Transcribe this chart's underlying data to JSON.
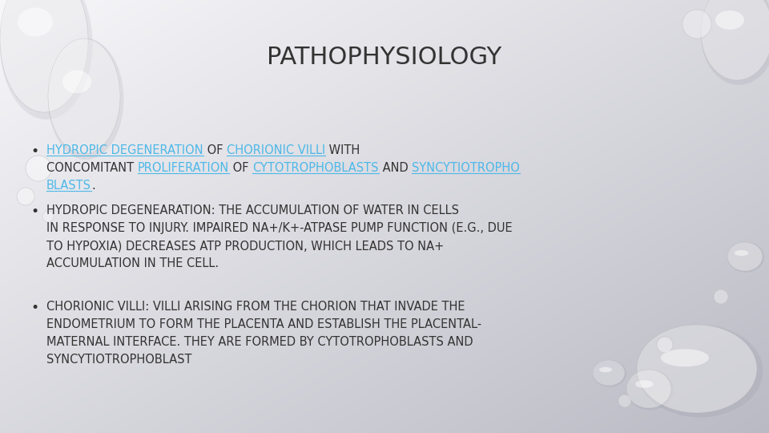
{
  "title": "PATHOPHYSIOLOGY",
  "title_fontsize": 22,
  "title_color": "#333333",
  "bg_top_left": "#f5f5f5",
  "bg_bottom_right": "#c0c0c8",
  "bullet1_segments": [
    {
      "text": "HYDROPIC DEGENERATION",
      "color": "#4db8e8",
      "underline": true
    },
    {
      "text": " OF ",
      "color": "#333333",
      "underline": false
    },
    {
      "text": "CHORIONIC VILLI",
      "color": "#4db8e8",
      "underline": true
    },
    {
      "text": " WITH",
      "color": "#333333",
      "underline": false
    }
  ],
  "bullet1_line2_segments": [
    {
      "text": "CONCOMITANT ",
      "color": "#333333",
      "underline": false
    },
    {
      "text": "PROLIFERATION",
      "color": "#4db8e8",
      "underline": true
    },
    {
      "text": " OF ",
      "color": "#333333",
      "underline": false
    },
    {
      "text": "CYTOTROPHOBLASTS",
      "color": "#4db8e8",
      "underline": true
    },
    {
      "text": " AND ",
      "color": "#333333",
      "underline": false
    },
    {
      "text": "SYNCYTIOTROPHO",
      "color": "#4db8e8",
      "underline": true
    }
  ],
  "bullet1_line3_segments": [
    {
      "text": "BLASTS",
      "color": "#4db8e8",
      "underline": true
    },
    {
      "text": ".",
      "color": "#333333",
      "underline": false
    }
  ],
  "bullet2_lines": [
    "HYDROPIC DEGENEARATION: THE ACCUMULATION OF WATER IN CELLS",
    "IN RESPONSE TO INJURY. IMPAIRED NA+/K+-ATPASE PUMP FUNCTION (E.G., DUE",
    "TO HYPOXIA) DECREASES ATP PRODUCTION, WHICH LEADS TO NA+",
    "ACCUMULATION IN THE CELL."
  ],
  "bullet3_lines": [
    "CHORIONIC VILLI: VILLI ARISING FROM THE CHORION THAT INVADE THE",
    "ENDOMETRIUM TO FORM THE PLACENTA AND ESTABLISH THE PLACENTAL-",
    "MATERNAL INTERFACE. THEY ARE FORMED BY CYTOTROPHOBLASTS AND",
    "SYNCYTIOTROPHOBLAST"
  ],
  "text_color": "#333333",
  "cyan_color": "#4db8e8",
  "body_fontsize": 10.5
}
